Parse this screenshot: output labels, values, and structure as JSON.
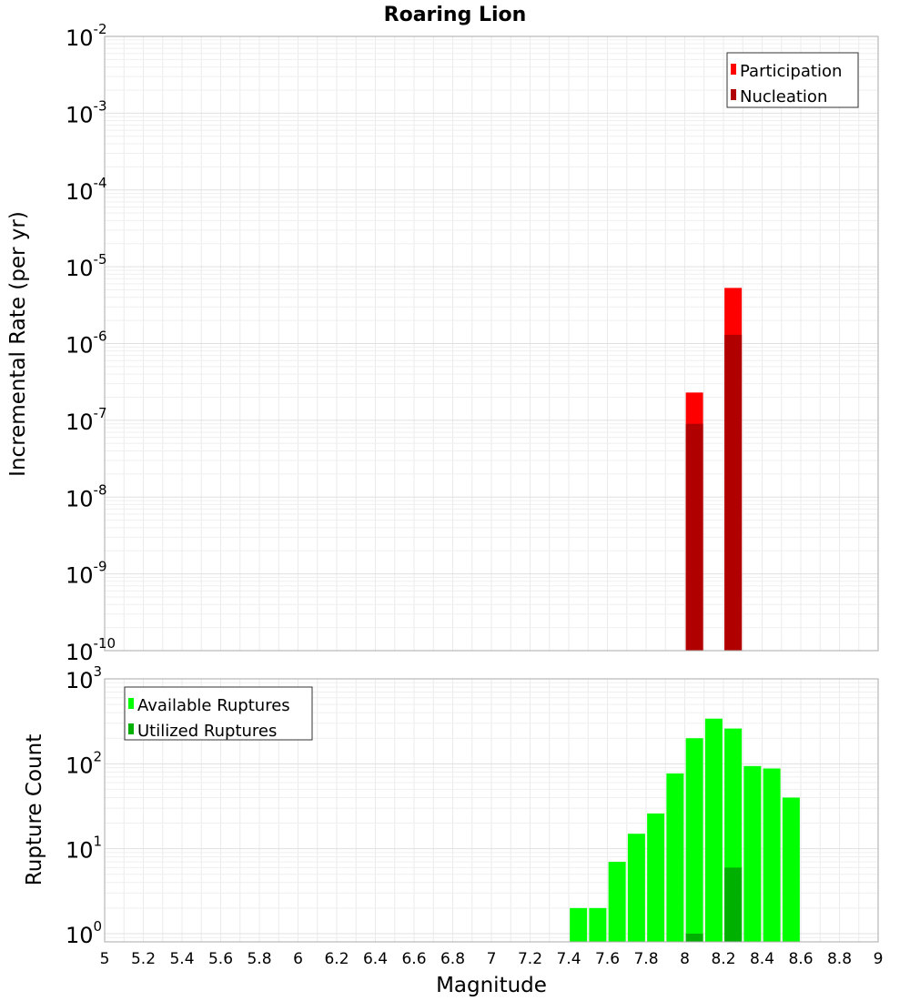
{
  "chart_data": [
    {
      "type": "bar",
      "title": "Roaring Lion",
      "xlabel": "Magnitude",
      "ylabel": "Incremental Rate (per yr)",
      "yscale": "log",
      "ylim": [
        1e-10,
        0.01
      ],
      "xlim": [
        5,
        9
      ],
      "y_ticks": [
        {
          "base": "10",
          "exp": "-10"
        },
        {
          "base": "10",
          "exp": "-9"
        },
        {
          "base": "10",
          "exp": "-8"
        },
        {
          "base": "10",
          "exp": "-7"
        },
        {
          "base": "10",
          "exp": "-6"
        },
        {
          "base": "10",
          "exp": "-5"
        },
        {
          "base": "10",
          "exp": "-4"
        },
        {
          "base": "10",
          "exp": "-3"
        },
        {
          "base": "10",
          "exp": "-2"
        }
      ],
      "legend": [
        {
          "label": "Participation",
          "color": "#ff0000"
        },
        {
          "label": "Nucleation",
          "color": "#b00000"
        }
      ],
      "series": [
        {
          "name": "Participation",
          "color": "#ff0000",
          "x": [
            8.05,
            8.25
          ],
          "values": [
            2.3e-07,
            5.3e-06
          ]
        },
        {
          "name": "Nucleation",
          "color": "#b00000",
          "x": [
            8.05,
            8.25
          ],
          "values": [
            9e-08,
            1.3e-06
          ]
        }
      ]
    },
    {
      "type": "bar",
      "title": "",
      "xlabel": "Magnitude",
      "ylabel": "Rupture Count",
      "yscale": "log",
      "ylim": [
        0.8,
        1000
      ],
      "xlim": [
        5,
        9
      ],
      "y_ticks": [
        {
          "base": "10",
          "exp": "0"
        },
        {
          "base": "10",
          "exp": "1"
        },
        {
          "base": "10",
          "exp": "2"
        },
        {
          "base": "10",
          "exp": "3"
        }
      ],
      "x_ticks": [
        "5",
        "5.2",
        "5.4",
        "5.6",
        "5.8",
        "6",
        "6.2",
        "6.4",
        "6.6",
        "6.8",
        "7",
        "7.2",
        "7.4",
        "7.6",
        "7.8",
        "8",
        "8.2",
        "8.4",
        "8.6",
        "8.8",
        "9"
      ],
      "legend": [
        {
          "label": "Available Ruptures",
          "color": "#00ff00"
        },
        {
          "label": "Utilized Ruptures",
          "color": "#00b000"
        }
      ],
      "series": [
        {
          "name": "Available Ruptures",
          "color": "#00ff00",
          "x": [
            7.45,
            7.55,
            7.65,
            7.75,
            7.85,
            7.95,
            8.05,
            8.15,
            8.25,
            8.35,
            8.45,
            8.55
          ],
          "values": [
            2,
            2,
            7,
            15,
            26,
            77,
            200,
            340,
            260,
            94,
            88,
            40
          ]
        },
        {
          "name": "Utilized Ruptures",
          "color": "#00b000",
          "x": [
            8.05,
            8.25
          ],
          "values": [
            1,
            6
          ]
        }
      ]
    }
  ]
}
